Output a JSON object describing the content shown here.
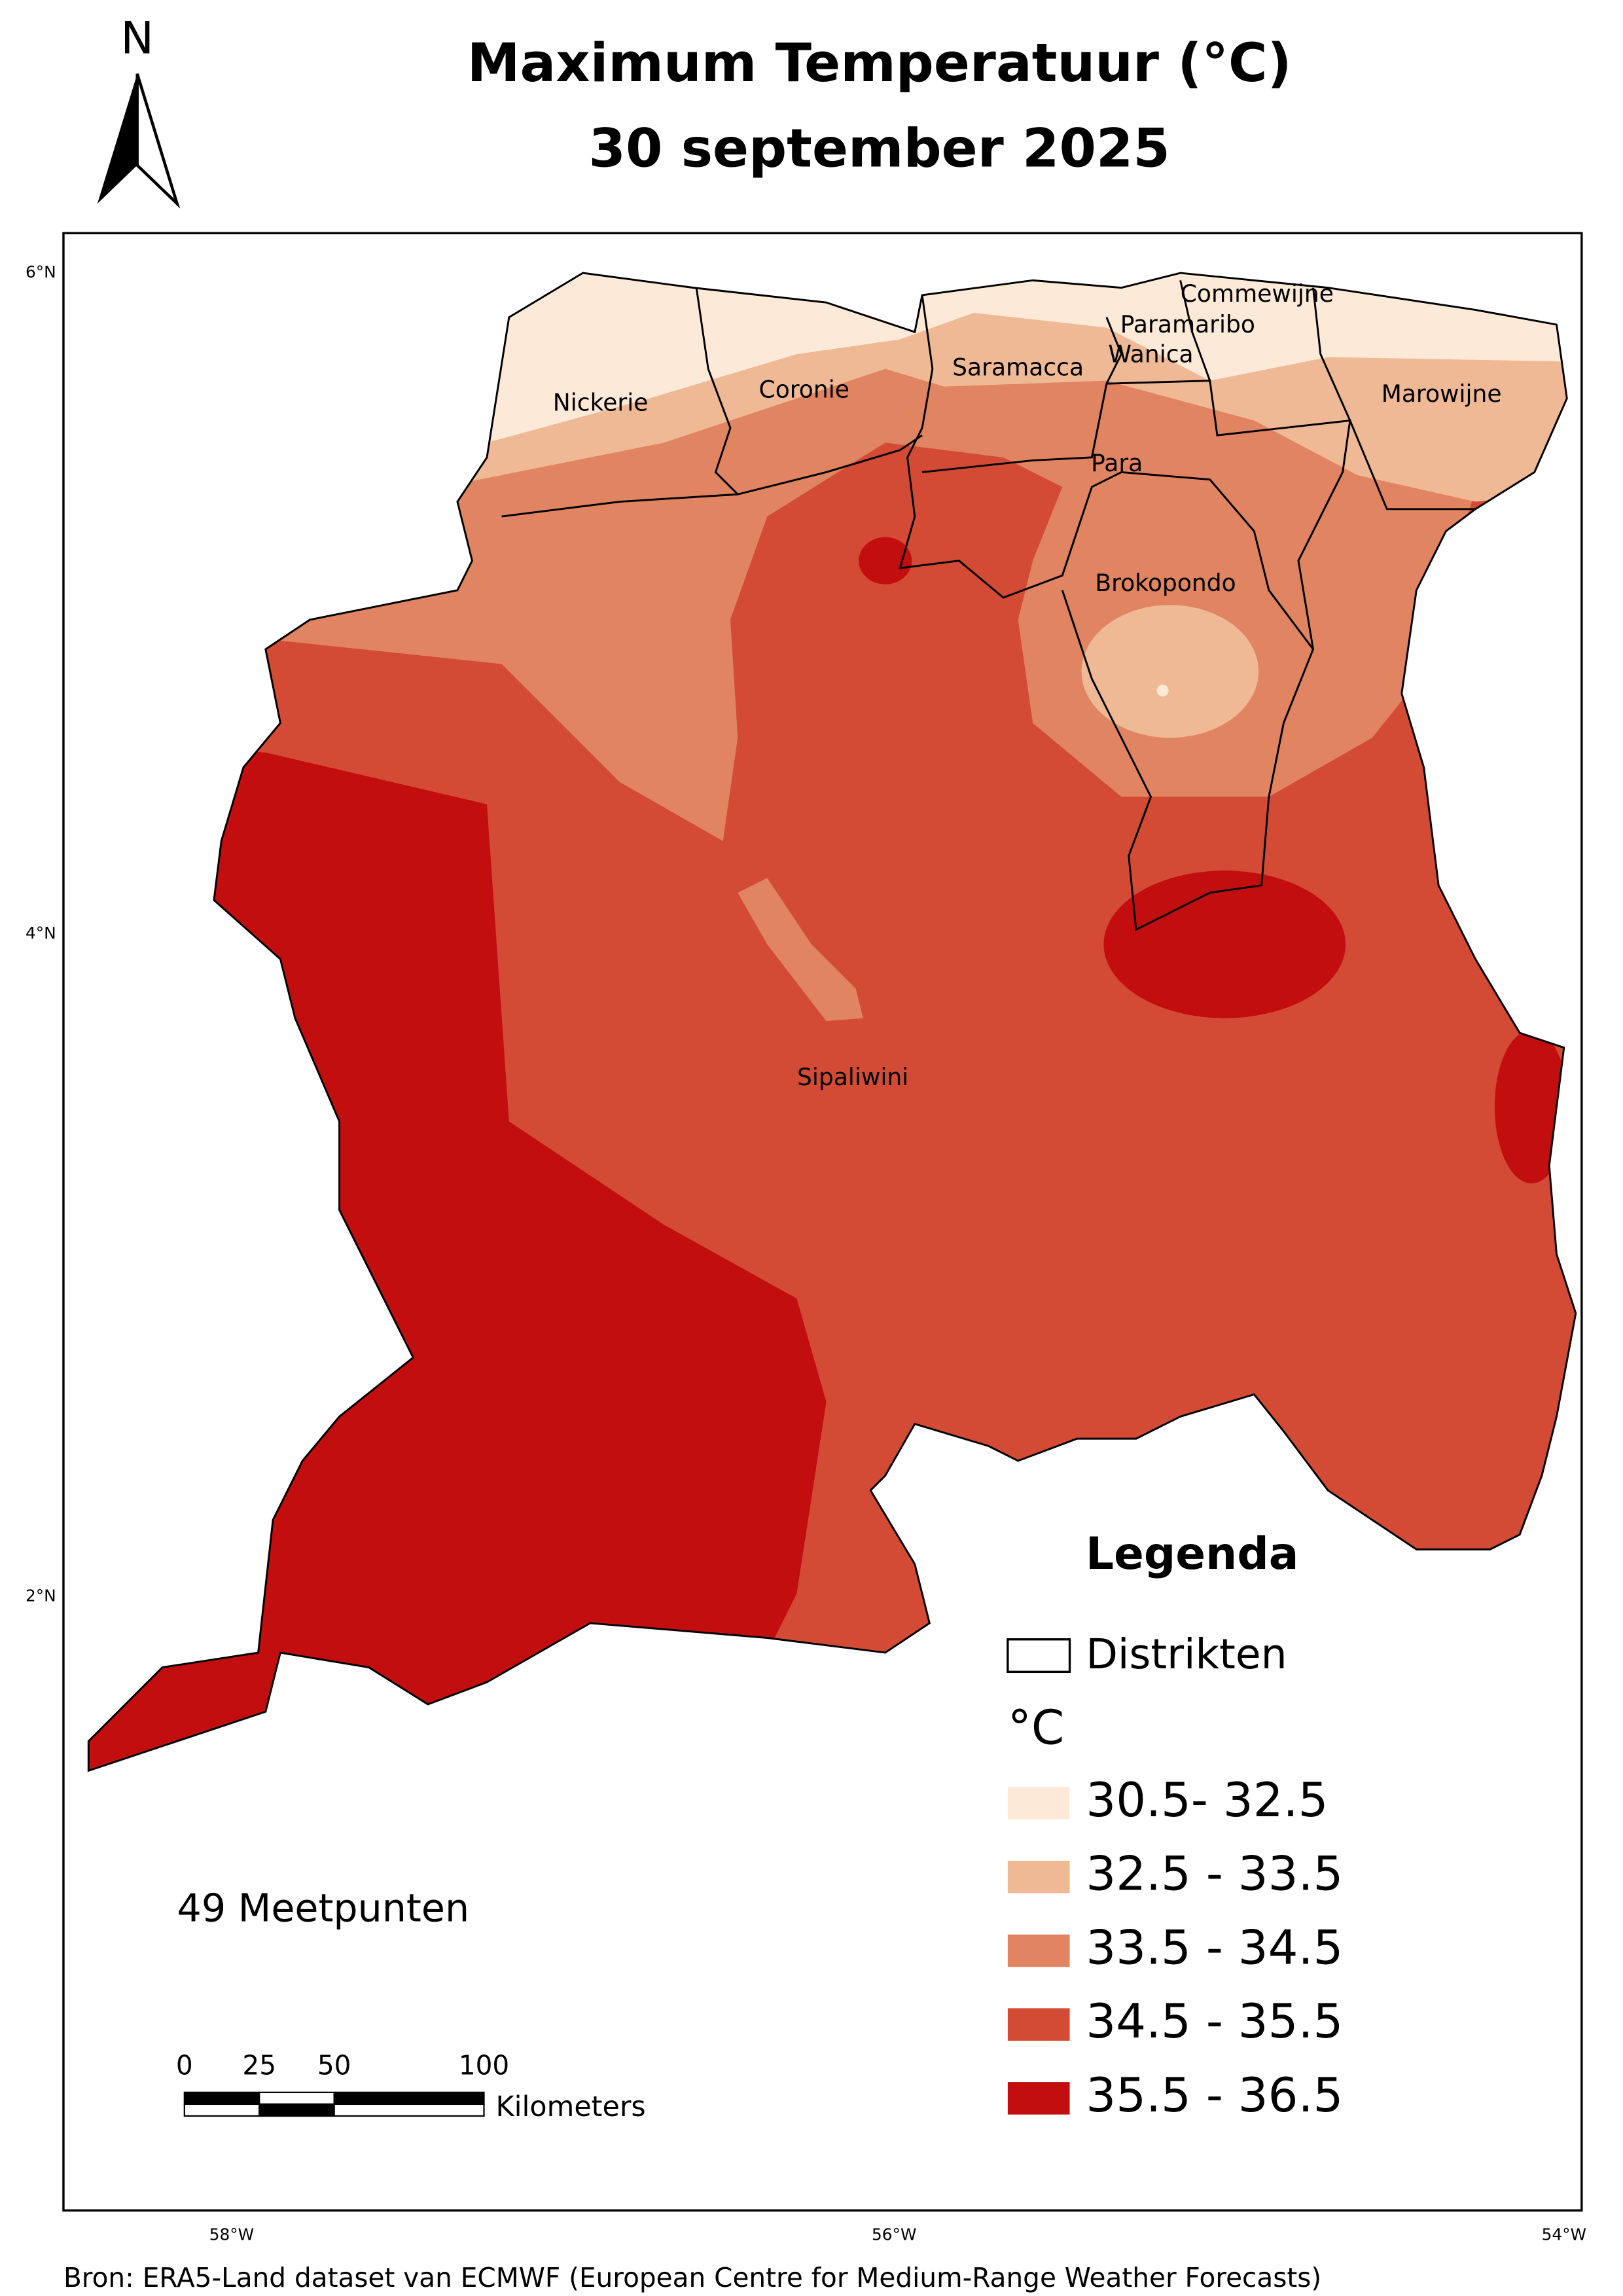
{
  "header": {
    "north": "N",
    "title_lines": [
      "Maximum Temperatuur (°C)",
      "30 september 2025"
    ]
  },
  "map": {
    "districts": [
      "Nickerie",
      "Coronie",
      "Saramacca",
      "Commewijne",
      "Paramaribo",
      "Wanica",
      "Marowijne",
      "Para",
      "Brokopondo",
      "Sipaliwini"
    ],
    "lat_labels": [
      "6°N",
      "4°N",
      "2°N"
    ],
    "lon_labels": [
      "58°W",
      "56°W",
      "54°W"
    ],
    "note": "49 Meetpunten"
  },
  "scale_bar": {
    "ticks": [
      0,
      25,
      50,
      100
    ],
    "unit": "Kilometers"
  },
  "legend": {
    "title": "Legenda",
    "boundary": "Distrikten",
    "unit": "°C",
    "classes": [
      {
        "label": "30.5- 32.5",
        "color": "#fde9d7"
      },
      {
        "label": "32.5 - 33.5",
        "color": "#efb996"
      },
      {
        "label": "33.5 - 34.5",
        "color": "#e08462"
      },
      {
        "label": "34.5 - 35.5",
        "color": "#d34b35"
      },
      {
        "label": "35.5 - 36.5",
        "color": "#c20e0f"
      }
    ]
  },
  "source": "Bron: ERA5-Land dataset van ECMWF (European Centre for Medium-Range Weather Forecasts)"
}
